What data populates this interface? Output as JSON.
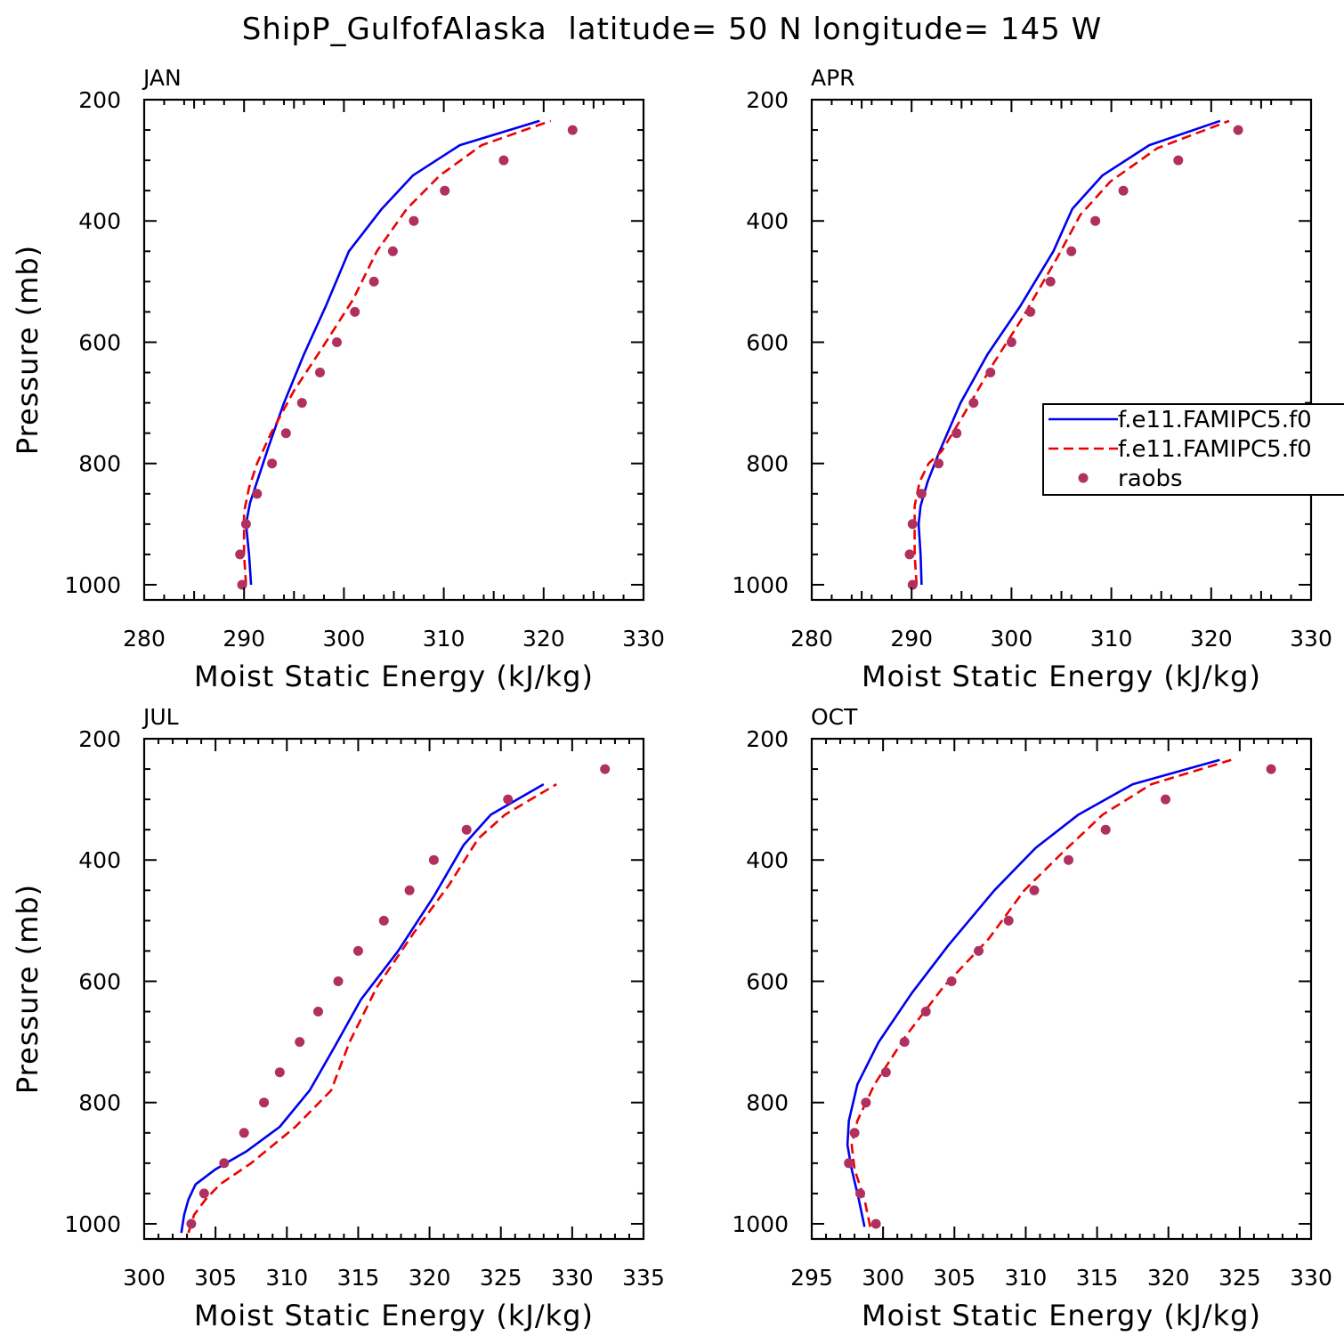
{
  "title": "ShipP_GulfofAlaska  latitude= 50 N longitude= 145 W",
  "colors": {
    "model1": "#0000ee",
    "model2": "#ee0000",
    "obs": "#b03060",
    "frame": "#000000"
  },
  "legend": {
    "panel": 1,
    "entries": [
      {
        "label": "f.e11.FAMIPC5.f0",
        "style": "solid",
        "color": "#0000ee"
      },
      {
        "label": "f.e11.FAMIPC5.f0",
        "style": "dashed",
        "color": "#ee0000"
      },
      {
        "label": "raobs",
        "style": "marker",
        "color": "#b03060"
      }
    ]
  },
  "chart_data": [
    {
      "type": "line",
      "title": "JAN",
      "xlabel": "Moist Static Energy (kJ/kg)",
      "ylabel": "Pressure (mb)",
      "xlim": [
        280,
        330
      ],
      "ylim": [
        1025,
        200
      ],
      "xticks": [
        280,
        290,
        300,
        310,
        320,
        330
      ],
      "yticks": [
        200,
        400,
        600,
        800,
        1000
      ],
      "grid": false,
      "series": [
        {
          "name": "f.e11.FAMIPC5.f0",
          "style": "solid",
          "x": [
            290.7,
            290.5,
            290.2,
            290.6,
            291.4,
            292.5,
            294.0,
            296.0,
            298.2,
            300.5,
            303.8,
            306.9,
            311.6,
            319.6
          ],
          "y": [
            1000,
            950,
            900,
            865,
            825,
            770,
            700,
            620,
            540,
            450,
            380,
            325,
            275,
            235
          ]
        },
        {
          "name": "f.e11.FAMIPC5.f0",
          "style": "dashed",
          "x": [
            290.2,
            290.0,
            290.0,
            290.5,
            291.3,
            292.7,
            295.0,
            297.8,
            300.9,
            303.3,
            306.3,
            309.6,
            313.8,
            320.7
          ],
          "y": [
            1000,
            950,
            880,
            840,
            800,
            750,
            680,
            610,
            530,
            450,
            380,
            325,
            275,
            235
          ]
        },
        {
          "name": "raobs",
          "style": "marker",
          "x": [
            289.8,
            289.6,
            290.2,
            291.3,
            292.8,
            294.2,
            295.8,
            297.6,
            299.3,
            301.1,
            303.0,
            304.9,
            307.0,
            310.1,
            316.0,
            322.9
          ],
          "y": [
            1000,
            950,
            900,
            850,
            800,
            750,
            700,
            650,
            600,
            550,
            500,
            450,
            400,
            350,
            300,
            250
          ]
        }
      ]
    },
    {
      "type": "line",
      "title": "APR",
      "xlabel": "Moist Static Energy (kJ/kg)",
      "ylabel": "",
      "xlim": [
        280,
        330
      ],
      "ylim": [
        1025,
        200
      ],
      "xticks": [
        280,
        290,
        300,
        310,
        320,
        330
      ],
      "yticks": [
        200,
        400,
        600,
        800,
        1000
      ],
      "grid": false,
      "series": [
        {
          "name": "f.e11.FAMIPC5.f0",
          "style": "solid",
          "x": [
            291.0,
            290.9,
            290.7,
            290.9,
            291.6,
            292.8,
            294.9,
            297.6,
            300.9,
            304.2,
            306.1,
            309.1,
            313.8,
            320.9
          ],
          "y": [
            1000,
            950,
            900,
            870,
            830,
            780,
            700,
            620,
            540,
            450,
            380,
            325,
            275,
            235
          ]
        },
        {
          "name": "f.e11.FAMIPC5.f0",
          "style": "dashed",
          "x": [
            290.5,
            290.3,
            290.3,
            290.8,
            291.7,
            293.0,
            295.2,
            298.0,
            301.1,
            304.6,
            306.9,
            309.9,
            314.6,
            321.8
          ],
          "y": [
            1000,
            950,
            870,
            830,
            800,
            780,
            720,
            640,
            560,
            460,
            390,
            335,
            280,
            235
          ]
        },
        {
          "name": "raobs",
          "style": "marker",
          "x": [
            290.1,
            289.8,
            290.1,
            291.0,
            292.7,
            294.5,
            296.2,
            297.9,
            300.0,
            301.9,
            303.9,
            306.0,
            308.4,
            311.2,
            316.7,
            322.7
          ],
          "y": [
            1000,
            950,
            900,
            850,
            800,
            750,
            700,
            650,
            600,
            550,
            500,
            450,
            400,
            350,
            300,
            250
          ]
        }
      ]
    },
    {
      "type": "line",
      "title": "JUL",
      "xlabel": "Moist Static Energy (kJ/kg)",
      "ylabel": "Pressure (mb)",
      "xlim": [
        300,
        335
      ],
      "ylim": [
        1025,
        200
      ],
      "xticks": [
        300,
        305,
        310,
        315,
        320,
        325,
        330,
        335
      ],
      "yticks": [
        200,
        400,
        600,
        800,
        1000
      ],
      "grid": false,
      "series": [
        {
          "name": "f.e11.FAMIPC5.f0",
          "style": "solid",
          "x": [
            302.6,
            302.8,
            303.1,
            303.6,
            305.0,
            307.2,
            309.5,
            311.6,
            313.3,
            315.2,
            317.8,
            320.3,
            322.4,
            324.3,
            328.0
          ],
          "y": [
            1015,
            985,
            960,
            935,
            910,
            880,
            840,
            780,
            710,
            630,
            550,
            460,
            375,
            325,
            275
          ]
        },
        {
          "name": "f.e11.FAMIPC5.f0",
          "style": "dashed",
          "x": [
            303.1,
            303.5,
            304.3,
            305.3,
            307.5,
            310.6,
            313.1,
            314.4,
            316.3,
            318.9,
            321.4,
            323.4,
            325.3,
            328.9
          ],
          "y": [
            1015,
            985,
            960,
            935,
            900,
            840,
            780,
            700,
            610,
            520,
            440,
            365,
            325,
            275
          ]
        },
        {
          "name": "raobs",
          "style": "marker",
          "x": [
            303.3,
            304.2,
            305.6,
            307.0,
            308.4,
            309.5,
            310.9,
            312.2,
            313.6,
            315.0,
            316.8,
            318.6,
            320.3,
            322.6,
            325.5,
            332.3
          ],
          "y": [
            1000,
            950,
            900,
            850,
            800,
            750,
            700,
            650,
            600,
            550,
            500,
            450,
            400,
            350,
            300,
            250
          ]
        }
      ]
    },
    {
      "type": "line",
      "title": "OCT",
      "xlabel": "Moist Static Energy (kJ/kg)",
      "ylabel": "",
      "xlim": [
        295,
        330
      ],
      "ylim": [
        1025,
        200
      ],
      "xticks": [
        295,
        300,
        305,
        310,
        315,
        320,
        325,
        330
      ],
      "yticks": [
        200,
        400,
        600,
        800,
        1000
      ],
      "grid": false,
      "series": [
        {
          "name": "f.e11.FAMIPC5.f0",
          "style": "solid",
          "x": [
            298.7,
            298.3,
            297.8,
            297.5,
            297.6,
            298.2,
            299.7,
            302.0,
            304.6,
            307.8,
            310.7,
            313.7,
            317.5,
            323.6
          ],
          "y": [
            1005,
            960,
            910,
            870,
            830,
            770,
            700,
            620,
            540,
            450,
            380,
            325,
            275,
            235
          ]
        },
        {
          "name": "f.e11.FAMIPC5.f0",
          "style": "dashed",
          "x": [
            299.1,
            298.7,
            298.0,
            297.8,
            298.2,
            299.4,
            301.6,
            304.2,
            307.4,
            309.9,
            312.7,
            315.4,
            318.8,
            324.4
          ],
          "y": [
            1005,
            960,
            910,
            870,
            830,
            770,
            690,
            610,
            530,
            450,
            385,
            325,
            275,
            235
          ]
        },
        {
          "name": "raobs",
          "style": "marker",
          "x": [
            299.5,
            298.4,
            297.6,
            298.0,
            298.8,
            300.2,
            301.5,
            303.0,
            304.8,
            306.7,
            308.8,
            310.6,
            313.0,
            315.6,
            319.8,
            327.2
          ],
          "y": [
            1000,
            950,
            900,
            850,
            800,
            750,
            700,
            650,
            600,
            550,
            500,
            450,
            400,
            350,
            300,
            250
          ]
        }
      ]
    }
  ]
}
